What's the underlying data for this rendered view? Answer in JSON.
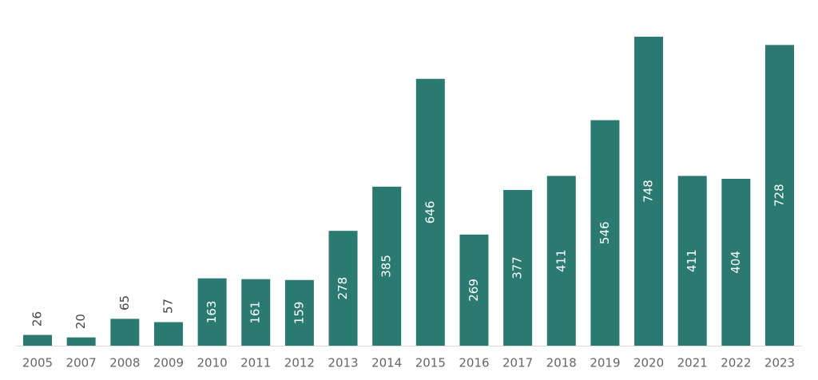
{
  "chart_data": {
    "type": "bar",
    "categories": [
      "2005",
      "2007",
      "2008",
      "2009",
      "2010",
      "2011",
      "2012",
      "2013",
      "2014",
      "2015",
      "2016",
      "2017",
      "2018",
      "2019",
      "2020",
      "2021",
      "2022",
      "2023"
    ],
    "values": [
      26,
      20,
      65,
      57,
      163,
      161,
      159,
      278,
      385,
      646,
      269,
      377,
      411,
      546,
      748,
      411,
      404,
      728
    ],
    "color": "#2b7a72"
  }
}
